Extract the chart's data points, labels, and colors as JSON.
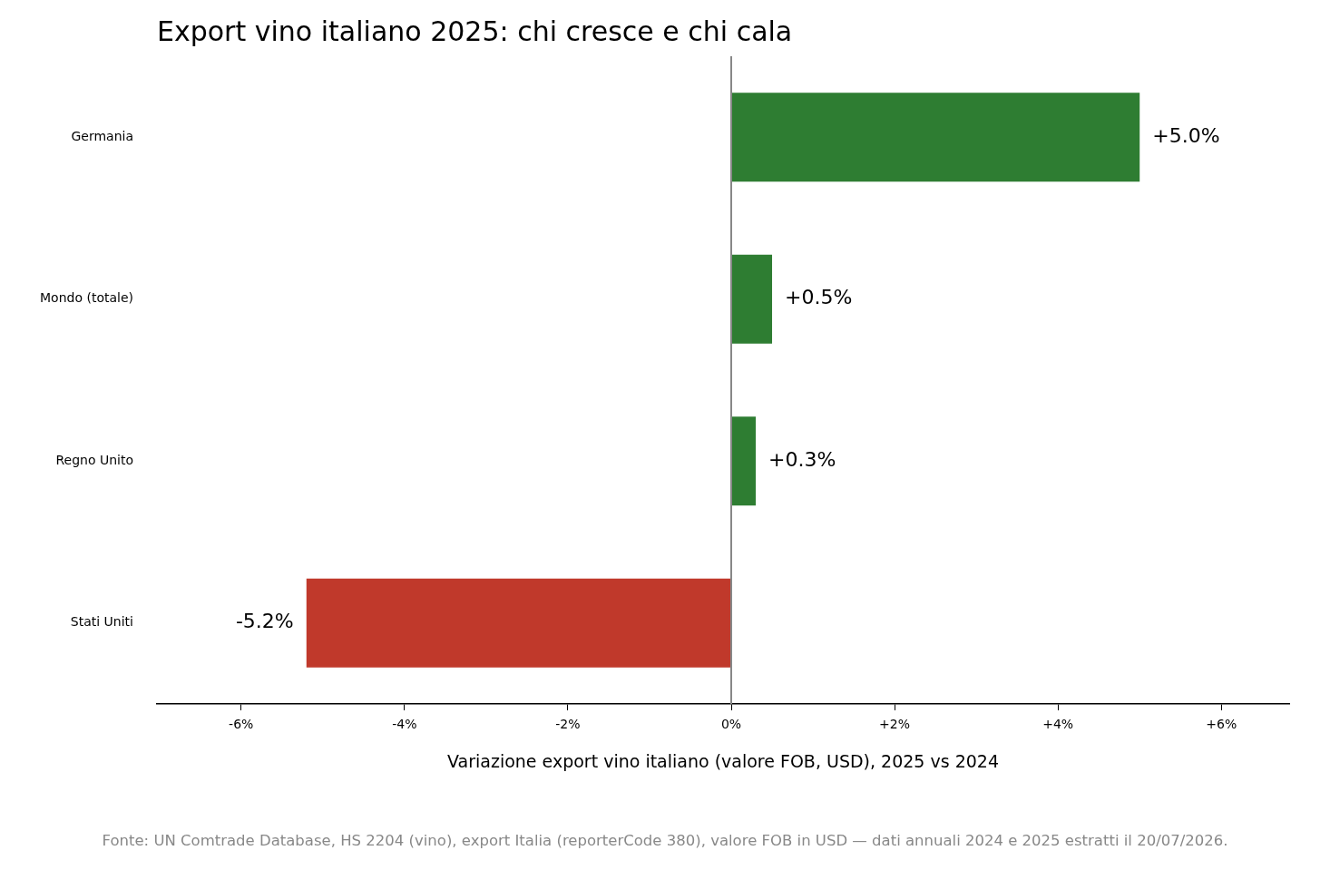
{
  "chart_data": {
    "type": "bar",
    "orientation": "horizontal",
    "title": "Export vino italiano 2025: chi cresce e chi cala",
    "xlabel": "Variazione export vino italiano (valore FOB, USD), 2025 vs 2024",
    "categories": [
      "Germania",
      "Mondo (totale)",
      "Regno Unito",
      "Stati Uniti"
    ],
    "values": [
      5.0,
      0.5,
      0.3,
      -5.2
    ],
    "colors": [
      "#2e7d32",
      "#2e7d32",
      "#2e7d32",
      "#c0392b"
    ],
    "value_labels": [
      "+5.0%",
      "+0.5%",
      "+0.3%",
      "-5.2%"
    ],
    "xlim": [
      -7.03,
      6.83
    ],
    "xticks": [
      {
        "value": -6,
        "label": "-6%"
      },
      {
        "value": -4,
        "label": "-4%"
      },
      {
        "value": -2,
        "label": "-2%"
      },
      {
        "value": 0,
        "label": "0%"
      },
      {
        "value": 2,
        "label": "+2%"
      },
      {
        "value": 4,
        "label": "+4%"
      },
      {
        "value": 6,
        "label": "+6%"
      }
    ],
    "ref_lines": [
      {
        "axis": "x",
        "value": 0,
        "color": "#888888"
      }
    ],
    "grid": false,
    "legend": false,
    "annotations": [
      "Fonte: UN Comtrade Database, HS 2204 (vino), export Italia (reporterCode 380), valore FOB in USD — dati annuali 2024 e 2025 estratti il 20/07/2026."
    ]
  }
}
